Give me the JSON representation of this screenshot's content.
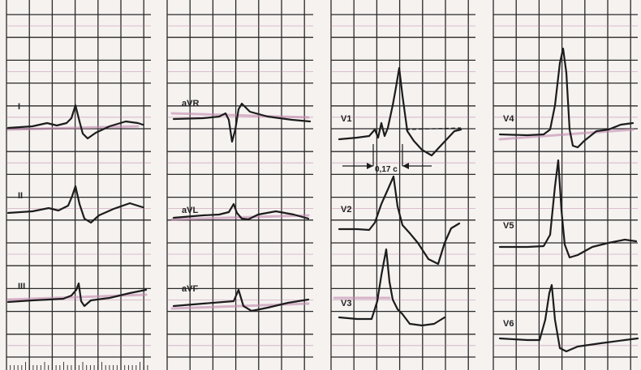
{
  "leads": [
    {
      "id": "I",
      "label": "I"
    },
    {
      "id": "II",
      "label": "II"
    },
    {
      "id": "III",
      "label": "III"
    },
    {
      "id": "aVR",
      "label": "aVR"
    },
    {
      "id": "aVL",
      "label": "aVL"
    },
    {
      "id": "aVF",
      "label": "aVF"
    },
    {
      "id": "V1",
      "label": "V1"
    },
    {
      "id": "V2",
      "label": "V2"
    },
    {
      "id": "V3",
      "label": "V3"
    },
    {
      "id": "V4",
      "label": "V4"
    },
    {
      "id": "V5",
      "label": "V5"
    },
    {
      "id": "V6",
      "label": "V6"
    }
  ],
  "annotation": {
    "interval_label": "0,17 c"
  },
  "colors": {
    "paper": "#f5f2f0",
    "grid_major": "#2a2a2a",
    "grid_minor_accent": "#b5739c",
    "trace": "#1c1c1c",
    "baseline_highlight": "#c38ab0"
  }
}
